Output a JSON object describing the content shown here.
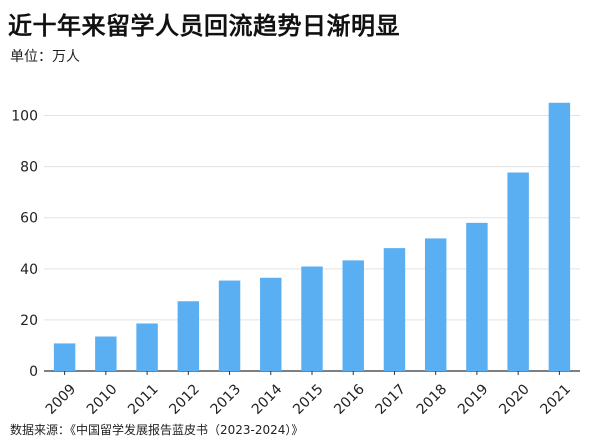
{
  "title": "近十年来留学人员回流趋势日渐明显",
  "unit_label": "单位：万人",
  "source": "数据来源：《中国留学发展报告蓝皮书（2023-2024）》",
  "colors": {
    "bar": "#5aaef2",
    "grid": "#e3e3e3",
    "axis": "#333333"
  },
  "chart_data": {
    "type": "bar",
    "categories": [
      "2009",
      "2010",
      "2011",
      "2012",
      "2013",
      "2014",
      "2015",
      "2016",
      "2017",
      "2018",
      "2019",
      "2020",
      "2021"
    ],
    "values": [
      10.8,
      13.5,
      18.6,
      27.3,
      35.4,
      36.5,
      40.9,
      43.3,
      48.1,
      51.9,
      58.0,
      77.7,
      105.0
    ],
    "ylim": [
      0,
      110
    ],
    "yticks": [
      0,
      20,
      40,
      60,
      80,
      100
    ],
    "grid": true,
    "xlabel": "",
    "ylabel": ""
  }
}
